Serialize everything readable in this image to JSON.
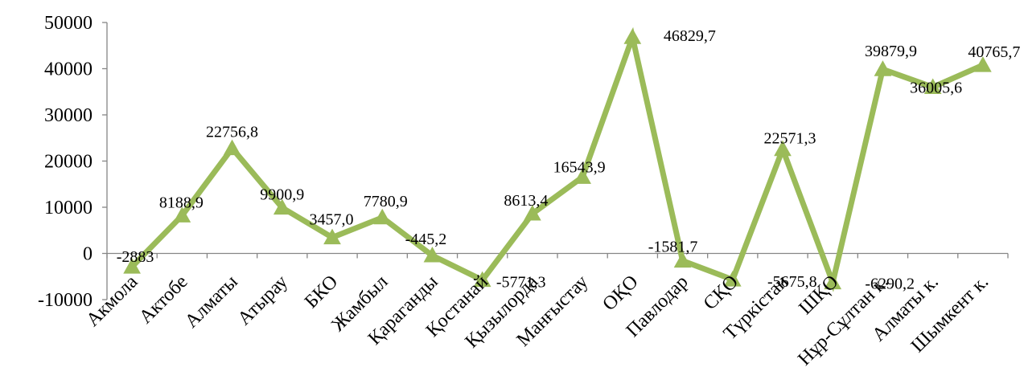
{
  "chart_data": {
    "type": "line",
    "title": "",
    "xlabel": "",
    "ylabel": "",
    "ylim": [
      -10000,
      50000
    ],
    "yticks": [
      "50000",
      "40000",
      "30000",
      "20000",
      "10000",
      "0",
      "-10000"
    ],
    "grid": false,
    "legend": "none",
    "categories": [
      "Акмола",
      "Актобе",
      "Алматы",
      "Атырау",
      "БКО",
      "Жамбыл",
      "Қараганды",
      "Қостанай",
      "Қызылорда",
      "Манғыстау",
      "ОҚО",
      "Павлодар",
      "СҚО",
      "Түркістан",
      "ШҚО",
      "Нұр-Сұлтан к.",
      "Алматы к.",
      "Шымкент к."
    ],
    "series": [
      {
        "color": "#9bbb59",
        "values": [
          -2883,
          8188.9,
          22756.8,
          9900.9,
          3457.0,
          7780.9,
          -445.2,
          -5771.3,
          8613.4,
          16543.9,
          46829.7,
          -1581.7,
          -5675.8,
          22571.3,
          -6290.2,
          39879.9,
          36005.6,
          40765.7
        ],
        "labels": [
          "-2883",
          "8188,9",
          "22756,8",
          "9900,9",
          "3457,0",
          "7780,9",
          "-445,2",
          "-5771,3",
          "8613,4",
          "16543,9",
          "46829,7",
          "-1581,7",
          "-5675,8",
          "22571,3",
          "-6290,2",
          "39879,9",
          "36005,6",
          "40765,7"
        ]
      }
    ]
  }
}
